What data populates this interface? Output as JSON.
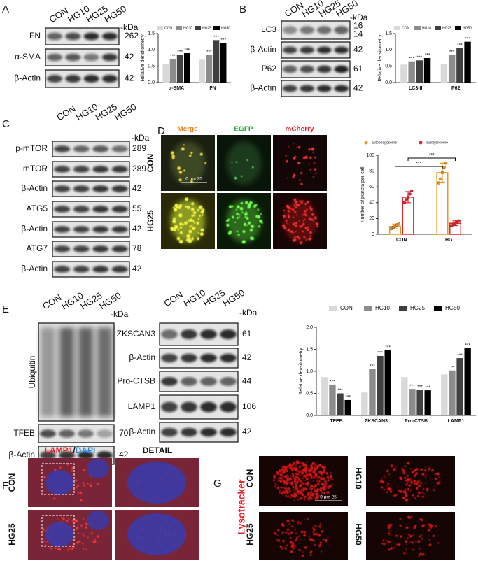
{
  "panels": {
    "A": {
      "letter": "A",
      "lanes": [
        "CON",
        "HG10",
        "HG25",
        "HG50"
      ],
      "unit": "-kDa",
      "blots": [
        {
          "label": "FN",
          "kda": 262
        },
        {
          "label": "α-SMA",
          "kda": 42
        },
        {
          "label": "β-Actin",
          "kda": 42
        }
      ]
    },
    "B": {
      "letter": "B",
      "lanes": [
        "CON",
        "HG10",
        "HG25",
        "HG50"
      ],
      "unit": "-kDa",
      "blots": [
        {
          "label": "LC3",
          "kda": [
            16,
            14
          ]
        },
        {
          "label": "β-Actin",
          "kda": 42
        },
        {
          "label": "P62",
          "kda": 61
        },
        {
          "label": "β-Actin",
          "kda": 42
        }
      ]
    },
    "C": {
      "letter": "C",
      "lanes": [
        "CON",
        "HG10",
        "HG25",
        "HG50"
      ],
      "unit": "-kDa",
      "blots": [
        {
          "label": "p-mTOR",
          "kda": 289
        },
        {
          "label": "mTOR",
          "kda": 289
        },
        {
          "label": "β-Actin",
          "kda": 42
        },
        {
          "label": "ATG5",
          "kda": 55
        },
        {
          "label": "β-Actin",
          "kda": 42
        },
        {
          "label": "ATG7",
          "kda": 78
        },
        {
          "label": "β-Actin",
          "kda": 42
        }
      ]
    },
    "D": {
      "letter": "D",
      "columns": [
        "Merge",
        "EGFP",
        "mCherry"
      ],
      "rows": [
        "CON",
        "HG25"
      ],
      "scale": "0    μm    25"
    },
    "E": {
      "letter": "E",
      "left": {
        "lanes": [
          "CON",
          "HG10",
          "HG25",
          "HG50"
        ],
        "unit": "-kDa",
        "blots": [
          {
            "label": "Ubiquitin"
          },
          {
            "label": "TFEB",
            "kda": 70
          },
          {
            "label": "β-Actin",
            "kda": 42
          }
        ]
      },
      "right": {
        "lanes": [
          "CON",
          "HG10",
          "HG25",
          "HG50"
        ],
        "unit": "-kDa",
        "blots": [
          {
            "label": "ZKSCAN3",
            "kda": 61
          },
          {
            "label": "β-Actin",
            "kda": 42
          },
          {
            "label": "Pro-CTSB",
            "kda": 44
          },
          {
            "label": "LAMP1",
            "kda": 106
          },
          {
            "label": "β-Actin",
            "kda": 42
          }
        ]
      }
    },
    "F": {
      "letter": "F",
      "title": [
        "LAMP1",
        "/",
        "DAPI"
      ],
      "detail": "DETAIL",
      "rows": [
        "CON",
        "HG25"
      ]
    },
    "G": {
      "letter": "G",
      "stain": "Lysotracker",
      "labels": [
        "CON",
        "HG10",
        "HG25",
        "HG50"
      ],
      "scale": "0    μm    25"
    }
  },
  "chart_data": [
    {
      "type": "bar",
      "y_label": "Relative densitometry",
      "categories": [
        "α-SMA",
        "FN"
      ],
      "ylim": [
        0,
        1.5
      ],
      "yticks": [
        {
          "value": 0,
          "label": "0.0"
        },
        0.5,
        {
          "value": 1,
          "label": "1.0"
        },
        1.5
      ],
      "series": [
        {
          "name": "CON",
          "color": "#d9d9d9",
          "values": [
            0.57,
            0.7
          ]
        },
        {
          "name": "HG10",
          "color": "#8c8c8c",
          "values": [
            0.72,
            0.85
          ],
          "stars": [
            "***",
            "***"
          ]
        },
        {
          "name": "HG25",
          "color": "#404040",
          "values": [
            0.85,
            1.3
          ],
          "stars": [
            "***",
            "***"
          ]
        },
        {
          "name": "HG50",
          "color": "#000000",
          "values": [
            0.9,
            1.22
          ],
          "stars": [
            "***",
            "***"
          ]
        }
      ]
    },
    {
      "type": "bar",
      "y_label": "Relative densitometry",
      "categories": [
        "LC3-II",
        "P62"
      ],
      "ylim": [
        0,
        1.5
      ],
      "yticks": [
        {
          "value": 0,
          "label": "0.0"
        },
        0.5,
        {
          "value": 1,
          "label": "1.0"
        },
        1.5
      ],
      "series": [
        {
          "name": "CON",
          "color": "#d9d9d9",
          "values": [
            0.55,
            0.57
          ]
        },
        {
          "name": "HG10",
          "color": "#8c8c8c",
          "values": [
            0.65,
            0.85
          ],
          "stars": [
            "***",
            "***"
          ]
        },
        {
          "name": "HG25",
          "color": "#404040",
          "values": [
            0.68,
            1.05
          ],
          "stars": [
            "***",
            "***"
          ]
        },
        {
          "name": "HG50",
          "color": "#000000",
          "values": [
            0.75,
            1.25
          ],
          "stars": [
            "***",
            "***"
          ]
        }
      ]
    },
    {
      "type": "bar",
      "hollow": true,
      "y_label": "Number of puncta per cell",
      "categories": [
        "CON",
        "HG"
      ],
      "ylim": [
        0,
        100
      ],
      "yticks": [
        0,
        20,
        40,
        60,
        80,
        100
      ],
      "comparisons": [
        "***",
        "***"
      ],
      "series": [
        {
          "name": "autophagosome",
          "color": "#f0961e",
          "values": [
            10,
            78
          ],
          "errors": [
            3,
            12
          ],
          "points": [
            [
              7,
              9,
              10,
              12,
              13
            ],
            [
              65,
              70,
              78,
              85,
              90
            ]
          ]
        },
        {
          "name": "autolysosome",
          "color": "#e8202a",
          "values": [
            47,
            14
          ],
          "errors": [
            7,
            3
          ],
          "points": [
            [
              40,
              44,
              47,
              51,
              55
            ],
            [
              11,
              13,
              14,
              15,
              17
            ]
          ]
        }
      ]
    },
    {
      "type": "bar",
      "y_label": "Relative densitometry",
      "categories": [
        "TFEB",
        "ZKSCAN3",
        "Pro-CTSB",
        "LAMP1"
      ],
      "ylim": [
        0,
        2
      ],
      "yticks": [
        {
          "value": 0,
          "label": "0.0"
        },
        0.5,
        {
          "value": 1,
          "label": "1.0"
        },
        1.5,
        {
          "value": 2,
          "label": "2.0"
        }
      ],
      "series": [
        {
          "name": "CON",
          "color": "#d9d9d9",
          "values": [
            0.87,
            0.52,
            0.87,
            0.93
          ]
        },
        {
          "name": "HG10",
          "color": "#8c8c8c",
          "values": [
            0.7,
            1.05,
            0.6,
            1.02
          ],
          "stars": [
            "***",
            "***",
            "***",
            "**"
          ]
        },
        {
          "name": "HG25",
          "color": "#404040",
          "values": [
            0.5,
            1.35,
            0.58,
            1.3
          ],
          "stars": [
            "***",
            "***",
            "***",
            "***"
          ]
        },
        {
          "name": "HG50",
          "color": "#000000",
          "values": [
            0.35,
            1.48,
            0.57,
            1.53
          ],
          "stars": [
            "***",
            "***",
            "***",
            "***"
          ]
        }
      ]
    }
  ]
}
